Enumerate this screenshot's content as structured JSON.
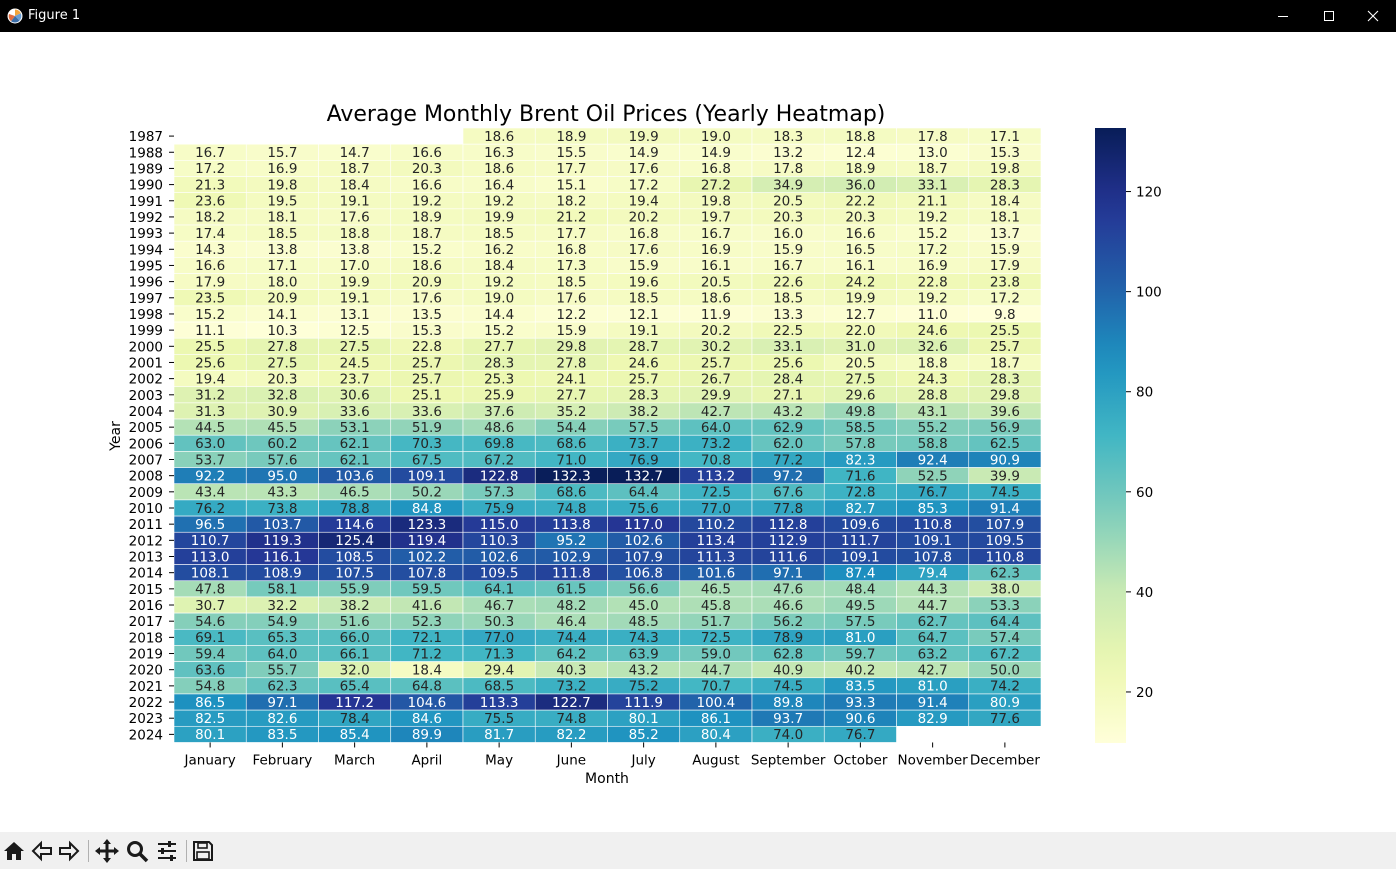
{
  "window": {
    "title": "Figure 1"
  },
  "icons": {
    "app": "matplotlib-logo-icon",
    "minimize": "minimize-icon",
    "maximize": "maximize-icon",
    "close": "close-icon"
  },
  "toolbar": {
    "tools": [
      "home-icon",
      "back-arrow-icon",
      "forward-arrow-icon",
      "pan-move-icon",
      "zoom-magnifier-icon",
      "subplots-sliders-icon",
      "save-floppy-icon"
    ]
  },
  "chart_data": {
    "type": "heatmap",
    "title": "Average Monthly Brent Oil Prices (Yearly Heatmap)",
    "xlabel": "Month",
    "ylabel": "Year",
    "colormap": "YlGnBu",
    "vmin": 9.8,
    "vmax": 132.7,
    "colorbar_ticks": [
      20,
      40,
      60,
      80,
      100,
      120
    ],
    "columns": [
      "January",
      "February",
      "March",
      "April",
      "May",
      "June",
      "July",
      "August",
      "September",
      "October",
      "November",
      "December"
    ],
    "rows": [
      "1987",
      "1988",
      "1989",
      "1990",
      "1991",
      "1992",
      "1993",
      "1994",
      "1995",
      "1996",
      "1997",
      "1998",
      "1999",
      "2000",
      "2001",
      "2002",
      "2003",
      "2004",
      "2005",
      "2006",
      "2007",
      "2008",
      "2009",
      "2010",
      "2011",
      "2012",
      "2013",
      "2014",
      "2015",
      "2016",
      "2017",
      "2018",
      "2019",
      "2020",
      "2021",
      "2022",
      "2023",
      "2024"
    ],
    "values": [
      [
        null,
        null,
        null,
        null,
        18.6,
        18.9,
        19.9,
        19.0,
        18.3,
        18.8,
        17.8,
        17.1
      ],
      [
        16.7,
        15.7,
        14.7,
        16.6,
        16.3,
        15.5,
        14.9,
        14.9,
        13.2,
        12.4,
        13.0,
        15.3
      ],
      [
        17.2,
        16.9,
        18.7,
        20.3,
        18.6,
        17.7,
        17.6,
        16.8,
        17.8,
        18.9,
        18.7,
        19.8
      ],
      [
        21.3,
        19.8,
        18.4,
        16.6,
        16.4,
        15.1,
        17.2,
        27.2,
        34.9,
        36.0,
        33.1,
        28.3
      ],
      [
        23.6,
        19.5,
        19.1,
        19.2,
        19.2,
        18.2,
        19.4,
        19.8,
        20.5,
        22.2,
        21.1,
        18.4
      ],
      [
        18.2,
        18.1,
        17.6,
        18.9,
        19.9,
        21.2,
        20.2,
        19.7,
        20.3,
        20.3,
        19.2,
        18.1
      ],
      [
        17.4,
        18.5,
        18.8,
        18.7,
        18.5,
        17.7,
        16.8,
        16.7,
        16.0,
        16.6,
        15.2,
        13.7
      ],
      [
        14.3,
        13.8,
        13.8,
        15.2,
        16.2,
        16.8,
        17.6,
        16.9,
        15.9,
        16.5,
        17.2,
        15.9
      ],
      [
        16.6,
        17.1,
        17.0,
        18.6,
        18.4,
        17.3,
        15.9,
        16.1,
        16.7,
        16.1,
        16.9,
        17.9
      ],
      [
        17.9,
        18.0,
        19.9,
        20.9,
        19.2,
        18.5,
        19.6,
        20.5,
        22.6,
        24.2,
        22.8,
        23.8
      ],
      [
        23.5,
        20.9,
        19.1,
        17.6,
        19.0,
        17.6,
        18.5,
        18.6,
        18.5,
        19.9,
        19.2,
        17.2
      ],
      [
        15.2,
        14.1,
        13.1,
        13.5,
        14.4,
        12.2,
        12.1,
        11.9,
        13.3,
        12.7,
        11.0,
        9.8
      ],
      [
        11.1,
        10.3,
        12.5,
        15.3,
        15.2,
        15.9,
        19.1,
        20.2,
        22.5,
        22.0,
        24.6,
        25.5
      ],
      [
        25.5,
        27.8,
        27.5,
        22.8,
        27.7,
        29.8,
        28.7,
        30.2,
        33.1,
        31.0,
        32.6,
        25.7
      ],
      [
        25.6,
        27.5,
        24.5,
        25.7,
        28.3,
        27.8,
        24.6,
        25.7,
        25.6,
        20.5,
        18.8,
        18.7
      ],
      [
        19.4,
        20.3,
        23.7,
        25.7,
        25.3,
        24.1,
        25.7,
        26.7,
        28.4,
        27.5,
        24.3,
        28.3
      ],
      [
        31.2,
        32.8,
        30.6,
        25.1,
        25.9,
        27.7,
        28.3,
        29.9,
        27.1,
        29.6,
        28.8,
        29.8
      ],
      [
        31.3,
        30.9,
        33.6,
        33.6,
        37.6,
        35.2,
        38.2,
        42.7,
        43.2,
        49.8,
        43.1,
        39.6
      ],
      [
        44.5,
        45.5,
        53.1,
        51.9,
        48.6,
        54.4,
        57.5,
        64.0,
        62.9,
        58.5,
        55.2,
        56.9
      ],
      [
        63.0,
        60.2,
        62.1,
        70.3,
        69.8,
        68.6,
        73.7,
        73.2,
        62.0,
        57.8,
        58.8,
        62.5
      ],
      [
        53.7,
        57.6,
        62.1,
        67.5,
        67.2,
        71.0,
        76.9,
        70.8,
        77.2,
        82.3,
        92.4,
        90.9
      ],
      [
        92.2,
        95.0,
        103.6,
        109.1,
        122.8,
        132.3,
        132.7,
        113.2,
        97.2,
        71.6,
        52.5,
        39.9
      ],
      [
        43.4,
        43.3,
        46.5,
        50.2,
        57.3,
        68.6,
        64.4,
        72.5,
        67.6,
        72.8,
        76.7,
        74.5
      ],
      [
        76.2,
        73.8,
        78.8,
        84.8,
        75.9,
        74.8,
        75.6,
        77.0,
        77.8,
        82.7,
        85.3,
        91.4
      ],
      [
        96.5,
        103.7,
        114.6,
        123.3,
        115.0,
        113.8,
        117.0,
        110.2,
        112.8,
        109.6,
        110.8,
        107.9
      ],
      [
        110.7,
        119.3,
        125.4,
        119.4,
        110.3,
        95.2,
        102.6,
        113.4,
        112.9,
        111.7,
        109.1,
        109.5
      ],
      [
        113.0,
        116.1,
        108.5,
        102.2,
        102.6,
        102.9,
        107.9,
        111.3,
        111.6,
        109.1,
        107.8,
        110.8
      ],
      [
        108.1,
        108.9,
        107.5,
        107.8,
        109.5,
        111.8,
        106.8,
        101.6,
        97.1,
        87.4,
        79.4,
        62.3
      ],
      [
        47.8,
        58.1,
        55.9,
        59.5,
        64.1,
        61.5,
        56.6,
        46.5,
        47.6,
        48.4,
        44.3,
        38.0
      ],
      [
        30.7,
        32.2,
        38.2,
        41.6,
        46.7,
        48.2,
        45.0,
        45.8,
        46.6,
        49.5,
        44.7,
        53.3
      ],
      [
        54.6,
        54.9,
        51.6,
        52.3,
        50.3,
        46.4,
        48.5,
        51.7,
        56.2,
        57.5,
        62.7,
        64.4
      ],
      [
        69.1,
        65.3,
        66.0,
        72.1,
        77.0,
        74.4,
        74.3,
        72.5,
        78.9,
        81.0,
        64.7,
        57.4
      ],
      [
        59.4,
        64.0,
        66.1,
        71.2,
        71.3,
        64.2,
        63.9,
        59.0,
        62.8,
        59.7,
        63.2,
        67.2
      ],
      [
        63.6,
        55.7,
        32.0,
        18.4,
        29.4,
        40.3,
        43.2,
        44.7,
        40.9,
        40.2,
        42.7,
        50.0
      ],
      [
        54.8,
        62.3,
        65.4,
        64.8,
        68.5,
        73.2,
        75.2,
        70.7,
        74.5,
        83.5,
        81.0,
        74.2
      ],
      [
        86.5,
        97.1,
        117.2,
        104.6,
        113.3,
        122.7,
        111.9,
        100.4,
        89.8,
        93.3,
        91.4,
        80.9
      ],
      [
        82.5,
        82.6,
        78.4,
        84.6,
        75.5,
        74.8,
        80.1,
        86.1,
        93.7,
        90.6,
        82.9,
        77.6
      ],
      [
        80.1,
        83.5,
        85.4,
        89.9,
        81.7,
        82.2,
        85.2,
        80.4,
        74.0,
        76.7,
        null,
        null
      ]
    ]
  }
}
